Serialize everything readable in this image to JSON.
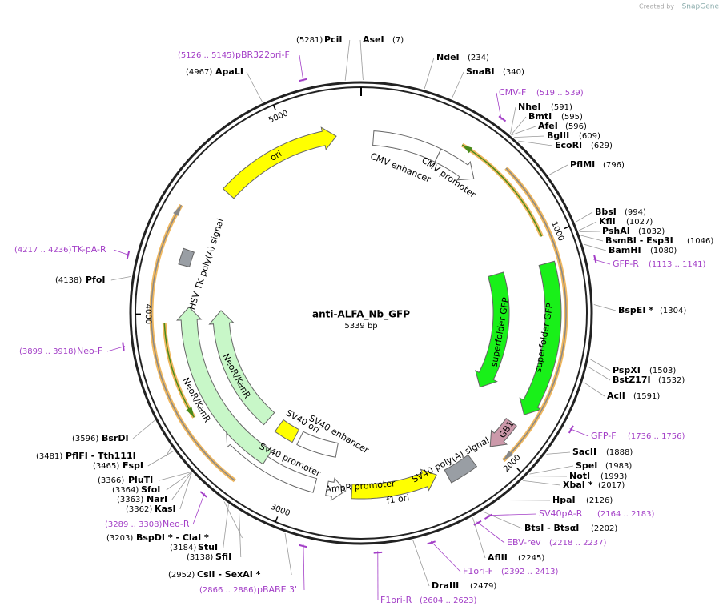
{
  "header": {
    "credit": "Created by",
    "brand": "SnapGene"
  },
  "map": {
    "name": "anti-ALFA_Nb_GFP",
    "length": "5339 bp",
    "ring_ticks": [
      "1000",
      "2000",
      "3000",
      "4000",
      "5000"
    ]
  },
  "enzymes": [
    {
      "name": "PciI",
      "pos": "(5281)"
    },
    {
      "name": "AseI",
      "pos": "(7)"
    },
    {
      "name": "NdeI",
      "pos": "(234)"
    },
    {
      "name": "SnaBI",
      "pos": "(340)"
    },
    {
      "name": "NheI",
      "pos": "(591)"
    },
    {
      "name": "BmtI",
      "pos": "(595)"
    },
    {
      "name": "AfeI",
      "pos": "(596)"
    },
    {
      "name": "BglII",
      "pos": "(609)"
    },
    {
      "name": "EcoRI",
      "pos": "(629)"
    },
    {
      "name": "PflMI",
      "pos": "(796)"
    },
    {
      "name": "BbsI",
      "pos": "(994)"
    },
    {
      "name": "KflI",
      "pos": "(1027)"
    },
    {
      "name": "PshAI",
      "pos": "(1032)"
    },
    {
      "name": "BsmBI  -  Esp3I",
      "pos": "(1046)"
    },
    {
      "name": "BamHI",
      "pos": "(1080)"
    },
    {
      "name": "BspEI *",
      "pos": "(1304)"
    },
    {
      "name": "PspXI",
      "pos": "(1503)"
    },
    {
      "name": "BstZ17I",
      "pos": "(1532)"
    },
    {
      "name": "AclI",
      "pos": "(1591)"
    },
    {
      "name": "SacII",
      "pos": "(1888)"
    },
    {
      "name": "SpeI",
      "pos": "(1983)"
    },
    {
      "name": "NotI",
      "pos": "(1993)"
    },
    {
      "name": "XbaI *",
      "pos": "(2017)"
    },
    {
      "name": "HpaI",
      "pos": "(2126)"
    },
    {
      "name": "BtsI  -  BtsαI",
      "pos": "(2202)"
    },
    {
      "name": "AflII",
      "pos": "(2245)"
    },
    {
      "name": "DraIII",
      "pos": "(2479)"
    },
    {
      "name": "CsiI  -  SexAI *",
      "pos": "(2952)"
    },
    {
      "name": "SfiI",
      "pos": "(3138)"
    },
    {
      "name": "StuI",
      "pos": "(3184)"
    },
    {
      "name": "BspDI *  -  ClaI *",
      "pos": "(3203)"
    },
    {
      "name": "KasI",
      "pos": "(3362)"
    },
    {
      "name": "NarI",
      "pos": "(3363)"
    },
    {
      "name": "SfoI",
      "pos": "(3364)"
    },
    {
      "name": "PluTI",
      "pos": "(3366)"
    },
    {
      "name": "FspI",
      "pos": "(3465)"
    },
    {
      "name": "PflFI  -  Tth111I",
      "pos": "(3481)"
    },
    {
      "name": "BsrDI",
      "pos": "(3596)"
    },
    {
      "name": "PfoI",
      "pos": "(4138)"
    },
    {
      "name": "ApaLI",
      "pos": "(4967)"
    }
  ],
  "primers": [
    {
      "name": "pBR322ori-F",
      "range": "(5126 .. 5145)"
    },
    {
      "name": "CMV-F",
      "range": "(519 .. 539)"
    },
    {
      "name": "GFP-R",
      "range": "(1113 .. 1141)"
    },
    {
      "name": "GFP-F",
      "range": "(1736 .. 1756)"
    },
    {
      "name": "SV40pA-R",
      "range": "(2164 .. 2183)"
    },
    {
      "name": "EBV-rev",
      "range": "(2218 .. 2237)"
    },
    {
      "name": "F1ori-F",
      "range": "(2392 .. 2413)"
    },
    {
      "name": "F1ori-R",
      "range": "(2604 .. 2623)"
    },
    {
      "name": "pBABE 3'",
      "range": "(2866 .. 2886)"
    },
    {
      "name": "Neo-R",
      "range": "(3289 .. 3308)"
    },
    {
      "name": "Neo-F",
      "range": "(3899 .. 3918)"
    },
    {
      "name": "TK-pA-R",
      "range": "(4217 .. 4236)"
    }
  ],
  "features": [
    "CMV enhancer",
    "CMV promoter",
    "ori",
    "superfolder GFP",
    "superfolder GFP",
    "GB1",
    "SV40 poly(A) signal",
    "f1 ori",
    "AmpR promoter",
    "SV40 promoter",
    "SV40 ori",
    "SV40 enhancer",
    "NeoR/KanR",
    "NeoR/KanR",
    "HSV TK poly(A) signal"
  ]
}
